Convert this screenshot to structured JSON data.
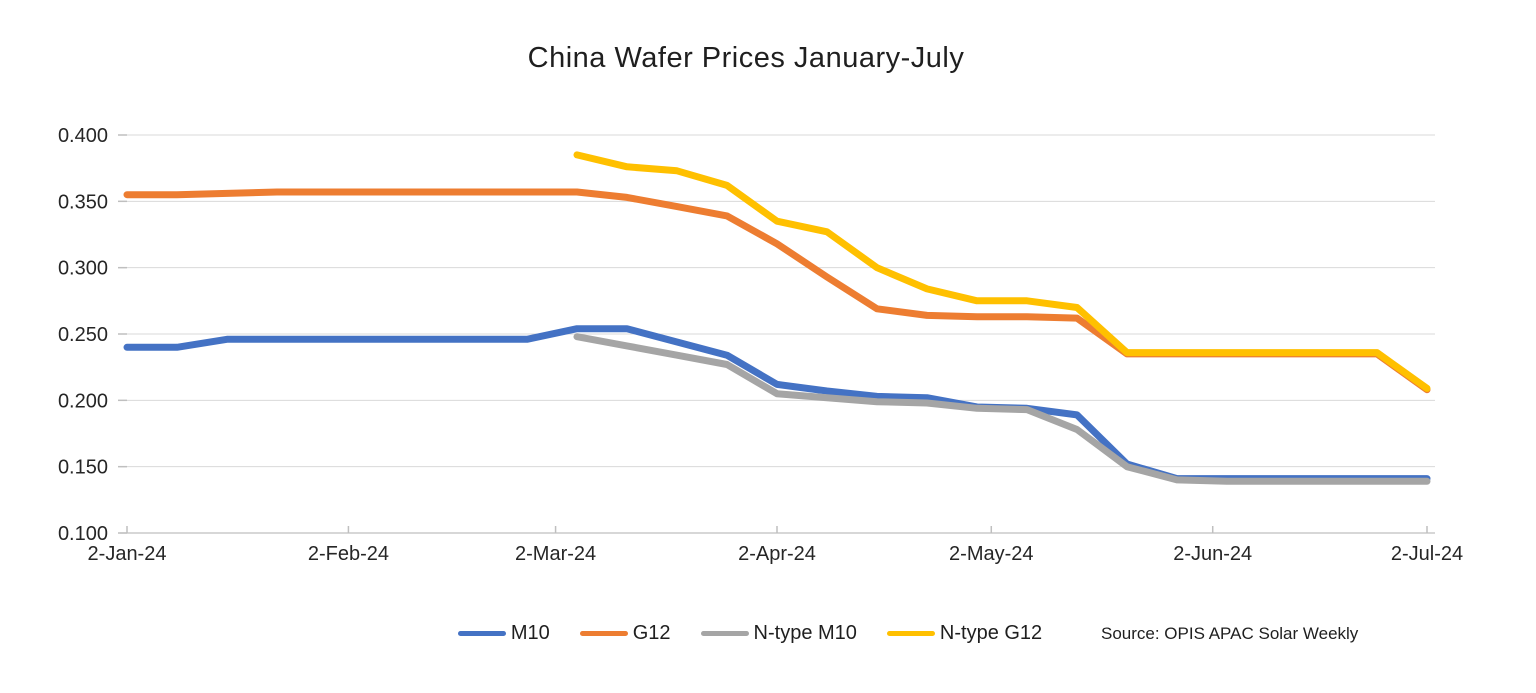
{
  "title": "China Wafer Prices January-July",
  "source_note": "Source: OPIS APAC Solar Weekly",
  "colors": {
    "m10": "#4472C4",
    "g12": "#ED7D31",
    "n_type_m10": "#A5A5A5",
    "n_type_g12": "#FFC000",
    "gridline": "#D9D9D9",
    "axis_line": "#BFBFBF",
    "tick_mark": "#BFBFBF",
    "text": "#262626"
  },
  "chart_data": {
    "type": "line",
    "title": "China Wafer Prices January-July",
    "legend_position": "bottom",
    "grid": "horizontal",
    "x_axis": {
      "tick_labels": [
        "2-Jan-24",
        "2-Feb-24",
        "2-Mar-24",
        "2-Apr-24",
        "2-May-24",
        "2-Jun-24",
        "2-Jul-24"
      ],
      "tick_day_offsets": [
        0,
        31,
        60,
        91,
        121,
        152,
        182
      ],
      "total_days": 182
    },
    "y_axis": {
      "min": 0.1,
      "max": 0.4,
      "tick_values": [
        0.4,
        0.35,
        0.3,
        0.25,
        0.2,
        0.15,
        0.1
      ],
      "tick_labels": [
        "0.400",
        "0.350",
        "0.300",
        "0.250",
        "0.200",
        "0.150",
        "0.100"
      ]
    },
    "dates": [
      "2-Jan-24",
      "9-Jan-24",
      "16-Jan-24",
      "23-Jan-24",
      "30-Jan-24",
      "6-Feb-24",
      "13-Feb-24",
      "20-Feb-24",
      "27-Feb-24",
      "5-Mar-24",
      "12-Mar-24",
      "19-Mar-24",
      "26-Mar-24",
      "2-Apr-24",
      "9-Apr-24",
      "16-Apr-24",
      "23-Apr-24",
      "30-Apr-24",
      "7-May-24",
      "14-May-24",
      "21-May-24",
      "28-May-24",
      "4-Jun-24",
      "11-Jun-24",
      "18-Jun-24",
      "25-Jun-24",
      "2-Jul-24"
    ],
    "series": [
      {
        "name": "M10",
        "color": "#4472C4",
        "values": [
          0.24,
          0.24,
          0.246,
          0.246,
          0.246,
          0.246,
          0.246,
          0.246,
          0.246,
          0.254,
          0.254,
          0.244,
          0.234,
          0.212,
          0.207,
          0.203,
          0.202,
          0.195,
          0.194,
          0.189,
          0.152,
          0.141,
          0.141,
          0.141,
          0.141,
          0.141,
          0.141
        ]
      },
      {
        "name": "G12",
        "color": "#ED7D31",
        "values": [
          0.355,
          0.355,
          0.356,
          0.357,
          0.357,
          0.357,
          0.357,
          0.357,
          0.357,
          0.357,
          0.353,
          0.346,
          0.339,
          0.318,
          0.293,
          0.269,
          0.264,
          0.263,
          0.263,
          0.262,
          0.235,
          0.235,
          0.235,
          0.235,
          0.235,
          0.235,
          0.208
        ]
      },
      {
        "name": "N-type M10",
        "color": "#A5A5A5",
        "values": [
          null,
          null,
          null,
          null,
          null,
          null,
          null,
          null,
          null,
          0.248,
          0.241,
          0.234,
          0.227,
          0.205,
          0.202,
          0.199,
          0.198,
          0.194,
          0.193,
          0.178,
          0.15,
          0.14,
          0.139,
          0.139,
          0.139,
          0.139,
          0.139
        ]
      },
      {
        "name": "N-type G12",
        "color": "#FFC000",
        "values": [
          null,
          null,
          null,
          null,
          null,
          null,
          null,
          null,
          null,
          0.385,
          0.376,
          0.373,
          0.362,
          0.335,
          0.327,
          0.3,
          0.284,
          0.275,
          0.275,
          0.27,
          0.236,
          0.236,
          0.236,
          0.236,
          0.236,
          0.236,
          0.209
        ]
      }
    ]
  }
}
